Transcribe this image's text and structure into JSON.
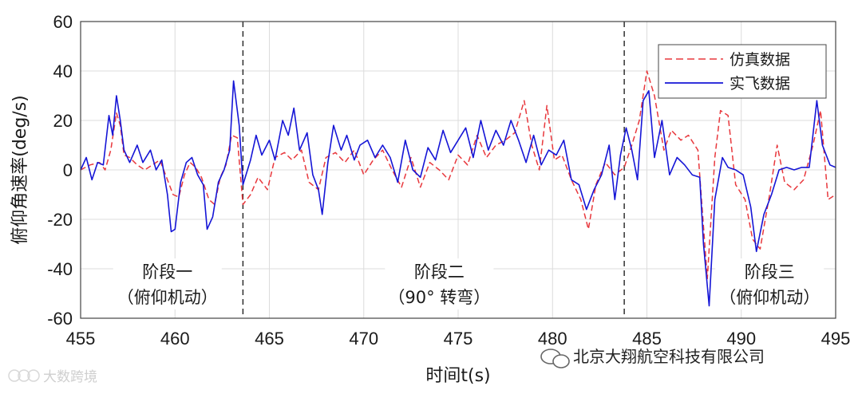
{
  "chart_data": {
    "type": "line",
    "xlabel": "时间t(s)",
    "ylabel": "俯仰角速率(deg/s)",
    "xlim": [
      455,
      495
    ],
    "ylim": [
      -60,
      60
    ],
    "x_ticks": [
      "455",
      "460",
      "465",
      "470",
      "475",
      "480",
      "485",
      "490",
      "495"
    ],
    "y_ticks": [
      "60",
      "40",
      "20",
      "0",
      "-20",
      "-40",
      "-60"
    ],
    "grid": true,
    "legend_position": "top-right",
    "stage_boundaries": [
      463.6,
      483.8
    ],
    "annotations": [
      {
        "line1": "阶段一",
        "line2": "（俯仰机动）",
        "x": 459.6
      },
      {
        "line1": "阶段二",
        "line2": "（90°  转弯）",
        "x": 474.0
      },
      {
        "line1": "阶段三",
        "line2": "（俯仰机动）",
        "x": 491.5
      }
    ],
    "series": [
      {
        "name": "仿真数据",
        "color": "#e8383d",
        "style": "dashed",
        "points": [
          [
            455,
            0
          ],
          [
            455.5,
            2
          ],
          [
            456,
            3
          ],
          [
            456.3,
            0
          ],
          [
            456.6,
            8
          ],
          [
            456.9,
            23
          ],
          [
            457.1,
            18
          ],
          [
            457.3,
            6
          ],
          [
            457.6,
            5
          ],
          [
            458,
            2
          ],
          [
            458.4,
            0
          ],
          [
            458.8,
            2
          ],
          [
            459.2,
            4
          ],
          [
            459.6,
            -4
          ],
          [
            459.9,
            -10
          ],
          [
            460.2,
            -11
          ],
          [
            460.5,
            -2
          ],
          [
            460.8,
            3
          ],
          [
            461.1,
            1
          ],
          [
            461.4,
            -3
          ],
          [
            461.8,
            -12
          ],
          [
            462.1,
            -14
          ],
          [
            462.4,
            -3
          ],
          [
            462.7,
            2
          ],
          [
            463,
            14
          ],
          [
            463.3,
            13
          ],
          [
            463.6,
            -14
          ],
          [
            464,
            -10
          ],
          [
            464.4,
            -3
          ],
          [
            464.9,
            -8
          ],
          [
            465.3,
            5
          ],
          [
            465.8,
            7
          ],
          [
            466.2,
            4
          ],
          [
            466.7,
            8
          ],
          [
            467.1,
            -5
          ],
          [
            467.6,
            -8
          ],
          [
            468,
            5
          ],
          [
            468.5,
            7
          ],
          [
            469,
            3
          ],
          [
            469.5,
            8
          ],
          [
            470,
            -2
          ],
          [
            470.5,
            4
          ],
          [
            471,
            8
          ],
          [
            471.5,
            0
          ],
          [
            472,
            -7
          ],
          [
            472.5,
            5
          ],
          [
            473,
            -7
          ],
          [
            473.5,
            3
          ],
          [
            474,
            0
          ],
          [
            474.5,
            -4
          ],
          [
            475,
            6
          ],
          [
            475.5,
            2
          ],
          [
            476,
            14
          ],
          [
            476.5,
            5
          ],
          [
            477,
            10
          ],
          [
            477.5,
            12
          ],
          [
            478,
            15
          ],
          [
            478.5,
            28
          ],
          [
            478.9,
            10
          ],
          [
            479.3,
            0
          ],
          [
            479.7,
            26
          ],
          [
            480.1,
            4
          ],
          [
            480.5,
            6
          ],
          [
            481,
            -4
          ],
          [
            481.5,
            -12
          ],
          [
            481.9,
            -24
          ],
          [
            482.3,
            -6
          ],
          [
            482.8,
            3
          ],
          [
            483.3,
            -2
          ],
          [
            483.8,
            1
          ],
          [
            484.2,
            10
          ],
          [
            484.6,
            20
          ],
          [
            485,
            40
          ],
          [
            485.4,
            30
          ],
          [
            485.9,
            8
          ],
          [
            486.3,
            16
          ],
          [
            486.8,
            12
          ],
          [
            487.2,
            14
          ],
          [
            487.7,
            8
          ],
          [
            488.2,
            -44
          ],
          [
            488.6,
            5
          ],
          [
            488.9,
            24
          ],
          [
            489.3,
            22
          ],
          [
            489.7,
            -6
          ],
          [
            490.2,
            -12
          ],
          [
            490.6,
            -28
          ],
          [
            491,
            -32
          ],
          [
            491.5,
            -10
          ],
          [
            491.9,
            10
          ],
          [
            492.3,
            -5
          ],
          [
            492.8,
            -8
          ],
          [
            493.3,
            -4
          ],
          [
            493.8,
            10
          ],
          [
            494.2,
            24
          ],
          [
            494.6,
            -12
          ],
          [
            495,
            -10
          ]
        ]
      },
      {
        "name": "实飞数据",
        "color": "#1515d6",
        "style": "solid",
        "points": [
          [
            455,
            0
          ],
          [
            455.3,
            5
          ],
          [
            455.6,
            -4
          ],
          [
            455.9,
            3
          ],
          [
            456.2,
            2
          ],
          [
            456.5,
            22
          ],
          [
            456.7,
            14
          ],
          [
            456.9,
            30
          ],
          [
            457.1,
            20
          ],
          [
            457.3,
            8
          ],
          [
            457.6,
            3
          ],
          [
            458,
            10
          ],
          [
            458.3,
            3
          ],
          [
            458.7,
            8
          ],
          [
            459,
            0
          ],
          [
            459.3,
            4
          ],
          [
            459.6,
            -10
          ],
          [
            459.8,
            -25
          ],
          [
            460,
            -24
          ],
          [
            460.3,
            -5
          ],
          [
            460.6,
            3
          ],
          [
            460.9,
            5
          ],
          [
            461.2,
            -2
          ],
          [
            461.5,
            -6
          ],
          [
            461.7,
            -24
          ],
          [
            462,
            -19
          ],
          [
            462.3,
            -5
          ],
          [
            462.6,
            0
          ],
          [
            462.9,
            8
          ],
          [
            463.1,
            36
          ],
          [
            463.4,
            18
          ],
          [
            463.6,
            -6
          ],
          [
            464,
            4
          ],
          [
            464.3,
            14
          ],
          [
            464.6,
            6
          ],
          [
            465,
            12
          ],
          [
            465.3,
            4
          ],
          [
            465.7,
            20
          ],
          [
            466,
            14
          ],
          [
            466.3,
            25
          ],
          [
            466.6,
            8
          ],
          [
            467,
            15
          ],
          [
            467.3,
            -2
          ],
          [
            467.6,
            -8
          ],
          [
            467.8,
            -18
          ],
          [
            468.1,
            3
          ],
          [
            468.4,
            18
          ],
          [
            468.8,
            8
          ],
          [
            469.1,
            14
          ],
          [
            469.5,
            4
          ],
          [
            469.8,
            10
          ],
          [
            470.2,
            12
          ],
          [
            470.6,
            5
          ],
          [
            471,
            10
          ],
          [
            471.4,
            5
          ],
          [
            471.8,
            -5
          ],
          [
            472.2,
            12
          ],
          [
            472.6,
            0
          ],
          [
            473,
            -3
          ],
          [
            473.4,
            9
          ],
          [
            473.8,
            4
          ],
          [
            474.2,
            16
          ],
          [
            474.6,
            7
          ],
          [
            475,
            12
          ],
          [
            475.4,
            17
          ],
          [
            475.8,
            5
          ],
          [
            476.2,
            20
          ],
          [
            476.6,
            8
          ],
          [
            477,
            16
          ],
          [
            477.4,
            10
          ],
          [
            477.8,
            20
          ],
          [
            478.2,
            12
          ],
          [
            478.6,
            3
          ],
          [
            479,
            14
          ],
          [
            479.4,
            2
          ],
          [
            479.8,
            8
          ],
          [
            480.2,
            6
          ],
          [
            480.6,
            12
          ],
          [
            481,
            -4
          ],
          [
            481.4,
            -6
          ],
          [
            481.8,
            -16
          ],
          [
            482.2,
            -8
          ],
          [
            482.6,
            -2
          ],
          [
            483,
            10
          ],
          [
            483.3,
            -12
          ],
          [
            483.6,
            6
          ],
          [
            483.9,
            17
          ],
          [
            484.2,
            8
          ],
          [
            484.5,
            -4
          ],
          [
            484.8,
            28
          ],
          [
            485.1,
            32
          ],
          [
            485.4,
            5
          ],
          [
            485.8,
            20
          ],
          [
            486.2,
            -2
          ],
          [
            486.6,
            5
          ],
          [
            487,
            2
          ],
          [
            487.4,
            -2
          ],
          [
            487.8,
            -3
          ],
          [
            488,
            -30
          ],
          [
            488.3,
            -55
          ],
          [
            488.6,
            -12
          ],
          [
            489,
            5
          ],
          [
            489.3,
            1
          ],
          [
            489.7,
            0
          ],
          [
            490.1,
            -2
          ],
          [
            490.5,
            -15
          ],
          [
            490.8,
            -33
          ],
          [
            491.2,
            -18
          ],
          [
            491.6,
            -10
          ],
          [
            492,
            0
          ],
          [
            492.4,
            1
          ],
          [
            492.8,
            0
          ],
          [
            493.2,
            1
          ],
          [
            493.6,
            1
          ],
          [
            494,
            28
          ],
          [
            494.3,
            10
          ],
          [
            494.7,
            2
          ],
          [
            495,
            1
          ]
        ]
      }
    ]
  },
  "watermarks": {
    "company": "北京大翔航空科技有限公司",
    "left": "大数跨境"
  }
}
